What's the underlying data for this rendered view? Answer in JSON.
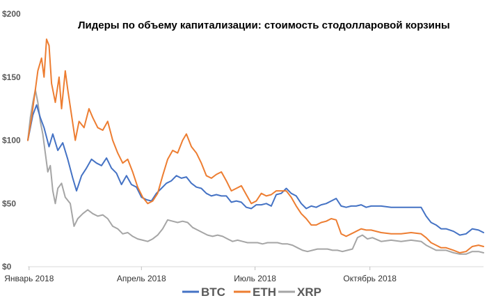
{
  "chart_data": {
    "type": "line",
    "title": "Лидеры по объему капитализации: стоимость стодолларовой корзины",
    "xlabel": "",
    "ylabel": "",
    "ylim": [
      0,
      200
    ],
    "y_ticks": [
      {
        "value": 0,
        "label": "$0"
      },
      {
        "value": 50,
        "label": "$50"
      },
      {
        "value": 100,
        "label": "$100"
      },
      {
        "value": 150,
        "label": "$150"
      },
      {
        "value": 200,
        "label": "$200"
      }
    ],
    "x_ticks": [
      {
        "date": "2018-01-01",
        "label": "Январь 2018"
      },
      {
        "date": "2018-04-01",
        "label": "Апрель 2018"
      },
      {
        "date": "2018-07-01",
        "label": "Июль 2018"
      },
      {
        "date": "2018-10-01",
        "label": "Октябрь 2018"
      }
    ],
    "xlim": [
      "2017-12-31",
      "2018-12-31"
    ],
    "grid": false,
    "legend_position": "bottom",
    "series": [
      {
        "name": "BTC",
        "color": "#4472c4",
        "points": [
          [
            "2017-12-31",
            100
          ],
          [
            "2018-01-04",
            120
          ],
          [
            "2018-01-07",
            128
          ],
          [
            "2018-01-10",
            118
          ],
          [
            "2018-01-13",
            110
          ],
          [
            "2018-01-17",
            95
          ],
          [
            "2018-01-20",
            105
          ],
          [
            "2018-01-24",
            92
          ],
          [
            "2018-01-28",
            98
          ],
          [
            "2018-02-01",
            85
          ],
          [
            "2018-02-05",
            70
          ],
          [
            "2018-02-08",
            60
          ],
          [
            "2018-02-12",
            72
          ],
          [
            "2018-02-16",
            78
          ],
          [
            "2018-02-20",
            85
          ],
          [
            "2018-02-24",
            82
          ],
          [
            "2018-02-28",
            80
          ],
          [
            "2018-03-04",
            86
          ],
          [
            "2018-03-08",
            78
          ],
          [
            "2018-03-12",
            74
          ],
          [
            "2018-03-16",
            65
          ],
          [
            "2018-03-20",
            72
          ],
          [
            "2018-03-24",
            65
          ],
          [
            "2018-03-28",
            63
          ],
          [
            "2018-04-01",
            55
          ],
          [
            "2018-04-05",
            53
          ],
          [
            "2018-04-09",
            52
          ],
          [
            "2018-04-13",
            58
          ],
          [
            "2018-04-17",
            62
          ],
          [
            "2018-04-21",
            66
          ],
          [
            "2018-04-25",
            68
          ],
          [
            "2018-04-29",
            72
          ],
          [
            "2018-05-03",
            70
          ],
          [
            "2018-05-07",
            71
          ],
          [
            "2018-05-11",
            66
          ],
          [
            "2018-05-15",
            63
          ],
          [
            "2018-05-19",
            62
          ],
          [
            "2018-05-23",
            58
          ],
          [
            "2018-05-27",
            56
          ],
          [
            "2018-05-31",
            57
          ],
          [
            "2018-06-04",
            56
          ],
          [
            "2018-06-08",
            56
          ],
          [
            "2018-06-12",
            51
          ],
          [
            "2018-06-16",
            52
          ],
          [
            "2018-06-20",
            51
          ],
          [
            "2018-06-24",
            47
          ],
          [
            "2018-06-28",
            46
          ],
          [
            "2018-07-02",
            49
          ],
          [
            "2018-07-06",
            49
          ],
          [
            "2018-07-10",
            50
          ],
          [
            "2018-07-14",
            48
          ],
          [
            "2018-07-18",
            57
          ],
          [
            "2018-07-22",
            58
          ],
          [
            "2018-07-26",
            62
          ],
          [
            "2018-07-30",
            58
          ],
          [
            "2018-08-03",
            56
          ],
          [
            "2018-08-07",
            50
          ],
          [
            "2018-08-11",
            46
          ],
          [
            "2018-08-15",
            48
          ],
          [
            "2018-08-19",
            47
          ],
          [
            "2018-08-23",
            49
          ],
          [
            "2018-08-27",
            50
          ],
          [
            "2018-08-31",
            52
          ],
          [
            "2018-09-04",
            54
          ],
          [
            "2018-09-08",
            48
          ],
          [
            "2018-09-12",
            47
          ],
          [
            "2018-09-16",
            48
          ],
          [
            "2018-09-20",
            48
          ],
          [
            "2018-09-24",
            49
          ],
          [
            "2018-09-28",
            47
          ],
          [
            "2018-10-02",
            48
          ],
          [
            "2018-10-10",
            48
          ],
          [
            "2018-10-18",
            47
          ],
          [
            "2018-10-26",
            47
          ],
          [
            "2018-11-03",
            47
          ],
          [
            "2018-11-11",
            47
          ],
          [
            "2018-11-15",
            40
          ],
          [
            "2018-11-19",
            35
          ],
          [
            "2018-11-23",
            33
          ],
          [
            "2018-11-27",
            30
          ],
          [
            "2018-12-01",
            30
          ],
          [
            "2018-12-07",
            28
          ],
          [
            "2018-12-12",
            25
          ],
          [
            "2018-12-17",
            26
          ],
          [
            "2018-12-22",
            30
          ],
          [
            "2018-12-27",
            29
          ],
          [
            "2018-12-31",
            27
          ]
        ]
      },
      {
        "name": "ETH",
        "color": "#ed7d31",
        "points": [
          [
            "2017-12-31",
            100
          ],
          [
            "2018-01-03",
            118
          ],
          [
            "2018-01-06",
            140
          ],
          [
            "2018-01-08",
            155
          ],
          [
            "2018-01-11",
            165
          ],
          [
            "2018-01-13",
            150
          ],
          [
            "2018-01-15",
            180
          ],
          [
            "2018-01-17",
            175
          ],
          [
            "2018-01-19",
            145
          ],
          [
            "2018-01-22",
            130
          ],
          [
            "2018-01-25",
            150
          ],
          [
            "2018-01-27",
            125
          ],
          [
            "2018-01-30",
            155
          ],
          [
            "2018-02-01",
            140
          ],
          [
            "2018-02-04",
            120
          ],
          [
            "2018-02-07",
            100
          ],
          [
            "2018-02-10",
            115
          ],
          [
            "2018-02-14",
            110
          ],
          [
            "2018-02-18",
            125
          ],
          [
            "2018-02-21",
            118
          ],
          [
            "2018-02-25",
            110
          ],
          [
            "2018-03-01",
            108
          ],
          [
            "2018-03-05",
            115
          ],
          [
            "2018-03-09",
            100
          ],
          [
            "2018-03-13",
            90
          ],
          [
            "2018-03-17",
            82
          ],
          [
            "2018-03-21",
            85
          ],
          [
            "2018-03-25",
            75
          ],
          [
            "2018-03-29",
            63
          ],
          [
            "2018-04-02",
            55
          ],
          [
            "2018-04-06",
            50
          ],
          [
            "2018-04-10",
            52
          ],
          [
            "2018-04-14",
            58
          ],
          [
            "2018-04-18",
            72
          ],
          [
            "2018-04-22",
            85
          ],
          [
            "2018-04-26",
            92
          ],
          [
            "2018-04-30",
            90
          ],
          [
            "2018-05-04",
            100
          ],
          [
            "2018-05-07",
            105
          ],
          [
            "2018-05-11",
            95
          ],
          [
            "2018-05-15",
            90
          ],
          [
            "2018-05-19",
            82
          ],
          [
            "2018-05-23",
            72
          ],
          [
            "2018-05-27",
            70
          ],
          [
            "2018-05-31",
            73
          ],
          [
            "2018-06-04",
            75
          ],
          [
            "2018-06-08",
            68
          ],
          [
            "2018-06-12",
            60
          ],
          [
            "2018-06-16",
            62
          ],
          [
            "2018-06-20",
            64
          ],
          [
            "2018-06-24",
            57
          ],
          [
            "2018-06-28",
            50
          ],
          [
            "2018-07-02",
            52
          ],
          [
            "2018-07-06",
            58
          ],
          [
            "2018-07-10",
            56
          ],
          [
            "2018-07-14",
            57
          ],
          [
            "2018-07-18",
            60
          ],
          [
            "2018-07-22",
            60
          ],
          [
            "2018-07-26",
            60
          ],
          [
            "2018-07-30",
            55
          ],
          [
            "2018-08-03",
            48
          ],
          [
            "2018-08-07",
            42
          ],
          [
            "2018-08-11",
            38
          ],
          [
            "2018-08-15",
            33
          ],
          [
            "2018-08-19",
            33
          ],
          [
            "2018-08-23",
            35
          ],
          [
            "2018-08-27",
            36
          ],
          [
            "2018-08-31",
            38
          ],
          [
            "2018-09-04",
            37
          ],
          [
            "2018-09-08",
            26
          ],
          [
            "2018-09-12",
            24
          ],
          [
            "2018-09-16",
            26
          ],
          [
            "2018-09-20",
            28
          ],
          [
            "2018-09-24",
            30
          ],
          [
            "2018-09-28",
            29
          ],
          [
            "2018-10-02",
            29
          ],
          [
            "2018-10-10",
            27
          ],
          [
            "2018-10-18",
            26
          ],
          [
            "2018-10-26",
            26
          ],
          [
            "2018-11-03",
            27
          ],
          [
            "2018-11-11",
            26
          ],
          [
            "2018-11-15",
            23
          ],
          [
            "2018-11-19",
            19
          ],
          [
            "2018-11-23",
            17
          ],
          [
            "2018-11-27",
            15
          ],
          [
            "2018-12-01",
            15
          ],
          [
            "2018-12-07",
            13
          ],
          [
            "2018-12-12",
            11
          ],
          [
            "2018-12-17",
            12
          ],
          [
            "2018-12-22",
            16
          ],
          [
            "2018-12-27",
            17
          ],
          [
            "2018-12-31",
            16
          ]
        ]
      },
      {
        "name": "XRP",
        "color": "#a5a5a5",
        "points": [
          [
            "2017-12-31",
            100
          ],
          [
            "2018-01-02",
            118
          ],
          [
            "2018-01-04",
            130
          ],
          [
            "2018-01-06",
            140
          ],
          [
            "2018-01-08",
            130
          ],
          [
            "2018-01-10",
            115
          ],
          [
            "2018-01-12",
            105
          ],
          [
            "2018-01-14",
            90
          ],
          [
            "2018-01-16",
            75
          ],
          [
            "2018-01-18",
            80
          ],
          [
            "2018-01-20",
            60
          ],
          [
            "2018-01-22",
            50
          ],
          [
            "2018-01-24",
            62
          ],
          [
            "2018-01-27",
            66
          ],
          [
            "2018-01-30",
            55
          ],
          [
            "2018-02-03",
            50
          ],
          [
            "2018-02-06",
            32
          ],
          [
            "2018-02-09",
            38
          ],
          [
            "2018-02-13",
            42
          ],
          [
            "2018-02-17",
            45
          ],
          [
            "2018-02-21",
            42
          ],
          [
            "2018-02-25",
            40
          ],
          [
            "2018-03-01",
            41
          ],
          [
            "2018-03-05",
            38
          ],
          [
            "2018-03-09",
            32
          ],
          [
            "2018-03-13",
            30
          ],
          [
            "2018-03-17",
            26
          ],
          [
            "2018-03-21",
            27
          ],
          [
            "2018-03-25",
            24
          ],
          [
            "2018-03-29",
            22
          ],
          [
            "2018-04-02",
            21
          ],
          [
            "2018-04-06",
            20
          ],
          [
            "2018-04-10",
            22
          ],
          [
            "2018-04-14",
            25
          ],
          [
            "2018-04-18",
            30
          ],
          [
            "2018-04-22",
            37
          ],
          [
            "2018-04-26",
            36
          ],
          [
            "2018-04-30",
            35
          ],
          [
            "2018-05-04",
            36
          ],
          [
            "2018-05-08",
            35
          ],
          [
            "2018-05-12",
            31
          ],
          [
            "2018-05-16",
            29
          ],
          [
            "2018-05-20",
            27
          ],
          [
            "2018-05-24",
            25
          ],
          [
            "2018-05-28",
            24
          ],
          [
            "2018-06-01",
            25
          ],
          [
            "2018-06-05",
            24
          ],
          [
            "2018-06-09",
            22
          ],
          [
            "2018-06-13",
            20
          ],
          [
            "2018-06-17",
            21
          ],
          [
            "2018-06-21",
            20
          ],
          [
            "2018-06-25",
            19
          ],
          [
            "2018-06-29",
            19
          ],
          [
            "2018-07-03",
            19
          ],
          [
            "2018-07-07",
            18
          ],
          [
            "2018-07-11",
            19
          ],
          [
            "2018-07-15",
            19
          ],
          [
            "2018-07-19",
            19
          ],
          [
            "2018-07-23",
            18
          ],
          [
            "2018-07-27",
            18
          ],
          [
            "2018-07-31",
            17
          ],
          [
            "2018-08-04",
            15
          ],
          [
            "2018-08-08",
            13
          ],
          [
            "2018-08-12",
            12
          ],
          [
            "2018-08-16",
            13
          ],
          [
            "2018-08-20",
            14
          ],
          [
            "2018-08-24",
            14
          ],
          [
            "2018-08-28",
            14
          ],
          [
            "2018-09-01",
            13
          ],
          [
            "2018-09-05",
            13
          ],
          [
            "2018-09-09",
            12
          ],
          [
            "2018-09-13",
            13
          ],
          [
            "2018-09-17",
            14
          ],
          [
            "2018-09-21",
            23
          ],
          [
            "2018-09-25",
            25
          ],
          [
            "2018-09-29",
            22
          ],
          [
            "2018-10-03",
            23
          ],
          [
            "2018-10-10",
            20
          ],
          [
            "2018-10-18",
            21
          ],
          [
            "2018-10-26",
            20
          ],
          [
            "2018-11-03",
            21
          ],
          [
            "2018-11-11",
            20
          ],
          [
            "2018-11-15",
            17
          ],
          [
            "2018-11-19",
            15
          ],
          [
            "2018-11-23",
            13
          ],
          [
            "2018-11-27",
            13
          ],
          [
            "2018-12-01",
            13
          ],
          [
            "2018-12-07",
            11
          ],
          [
            "2018-12-12",
            10
          ],
          [
            "2018-12-17",
            10
          ],
          [
            "2018-12-22",
            12
          ],
          [
            "2018-12-27",
            12
          ],
          [
            "2018-12-31",
            11
          ]
        ]
      }
    ]
  }
}
